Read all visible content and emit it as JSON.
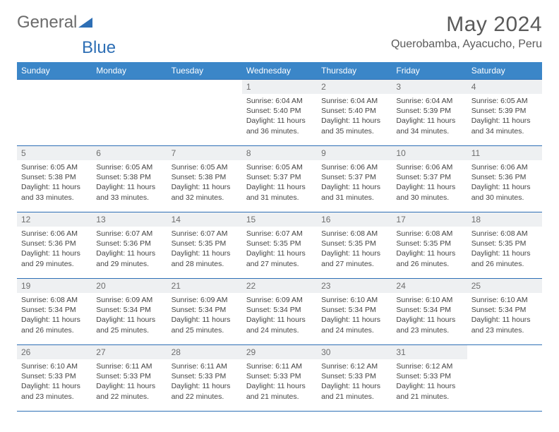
{
  "brand": {
    "part1": "General",
    "part2": "Blue"
  },
  "title": "May 2024",
  "location": "Querobamba, Ayacucho, Peru",
  "weekdays": [
    "Sunday",
    "Monday",
    "Tuesday",
    "Wednesday",
    "Thursday",
    "Friday",
    "Saturday"
  ],
  "colors": {
    "header_bg": "#3b86c8",
    "header_fg": "#ffffff",
    "rule": "#2e6fb5",
    "daynum_bg": "#eef0f2",
    "text": "#444444",
    "logo_gray": "#6b6b6b",
    "logo_blue": "#2e6fb5"
  },
  "first_weekday_index": 3,
  "days": [
    {
      "n": 1,
      "sunrise": "6:04 AM",
      "sunset": "5:40 PM",
      "daylight": "11 hours and 36 minutes."
    },
    {
      "n": 2,
      "sunrise": "6:04 AM",
      "sunset": "5:40 PM",
      "daylight": "11 hours and 35 minutes."
    },
    {
      "n": 3,
      "sunrise": "6:04 AM",
      "sunset": "5:39 PM",
      "daylight": "11 hours and 34 minutes."
    },
    {
      "n": 4,
      "sunrise": "6:05 AM",
      "sunset": "5:39 PM",
      "daylight": "11 hours and 34 minutes."
    },
    {
      "n": 5,
      "sunrise": "6:05 AM",
      "sunset": "5:38 PM",
      "daylight": "11 hours and 33 minutes."
    },
    {
      "n": 6,
      "sunrise": "6:05 AM",
      "sunset": "5:38 PM",
      "daylight": "11 hours and 33 minutes."
    },
    {
      "n": 7,
      "sunrise": "6:05 AM",
      "sunset": "5:38 PM",
      "daylight": "11 hours and 32 minutes."
    },
    {
      "n": 8,
      "sunrise": "6:05 AM",
      "sunset": "5:37 PM",
      "daylight": "11 hours and 31 minutes."
    },
    {
      "n": 9,
      "sunrise": "6:06 AM",
      "sunset": "5:37 PM",
      "daylight": "11 hours and 31 minutes."
    },
    {
      "n": 10,
      "sunrise": "6:06 AM",
      "sunset": "5:37 PM",
      "daylight": "11 hours and 30 minutes."
    },
    {
      "n": 11,
      "sunrise": "6:06 AM",
      "sunset": "5:36 PM",
      "daylight": "11 hours and 30 minutes."
    },
    {
      "n": 12,
      "sunrise": "6:06 AM",
      "sunset": "5:36 PM",
      "daylight": "11 hours and 29 minutes."
    },
    {
      "n": 13,
      "sunrise": "6:07 AM",
      "sunset": "5:36 PM",
      "daylight": "11 hours and 29 minutes."
    },
    {
      "n": 14,
      "sunrise": "6:07 AM",
      "sunset": "5:35 PM",
      "daylight": "11 hours and 28 minutes."
    },
    {
      "n": 15,
      "sunrise": "6:07 AM",
      "sunset": "5:35 PM",
      "daylight": "11 hours and 27 minutes."
    },
    {
      "n": 16,
      "sunrise": "6:08 AM",
      "sunset": "5:35 PM",
      "daylight": "11 hours and 27 minutes."
    },
    {
      "n": 17,
      "sunrise": "6:08 AM",
      "sunset": "5:35 PM",
      "daylight": "11 hours and 26 minutes."
    },
    {
      "n": 18,
      "sunrise": "6:08 AM",
      "sunset": "5:35 PM",
      "daylight": "11 hours and 26 minutes."
    },
    {
      "n": 19,
      "sunrise": "6:08 AM",
      "sunset": "5:34 PM",
      "daylight": "11 hours and 26 minutes."
    },
    {
      "n": 20,
      "sunrise": "6:09 AM",
      "sunset": "5:34 PM",
      "daylight": "11 hours and 25 minutes."
    },
    {
      "n": 21,
      "sunrise": "6:09 AM",
      "sunset": "5:34 PM",
      "daylight": "11 hours and 25 minutes."
    },
    {
      "n": 22,
      "sunrise": "6:09 AM",
      "sunset": "5:34 PM",
      "daylight": "11 hours and 24 minutes."
    },
    {
      "n": 23,
      "sunrise": "6:10 AM",
      "sunset": "5:34 PM",
      "daylight": "11 hours and 24 minutes."
    },
    {
      "n": 24,
      "sunrise": "6:10 AM",
      "sunset": "5:34 PM",
      "daylight": "11 hours and 23 minutes."
    },
    {
      "n": 25,
      "sunrise": "6:10 AM",
      "sunset": "5:34 PM",
      "daylight": "11 hours and 23 minutes."
    },
    {
      "n": 26,
      "sunrise": "6:10 AM",
      "sunset": "5:33 PM",
      "daylight": "11 hours and 23 minutes."
    },
    {
      "n": 27,
      "sunrise": "6:11 AM",
      "sunset": "5:33 PM",
      "daylight": "11 hours and 22 minutes."
    },
    {
      "n": 28,
      "sunrise": "6:11 AM",
      "sunset": "5:33 PM",
      "daylight": "11 hours and 22 minutes."
    },
    {
      "n": 29,
      "sunrise": "6:11 AM",
      "sunset": "5:33 PM",
      "daylight": "11 hours and 21 minutes."
    },
    {
      "n": 30,
      "sunrise": "6:12 AM",
      "sunset": "5:33 PM",
      "daylight": "11 hours and 21 minutes."
    },
    {
      "n": 31,
      "sunrise": "6:12 AM",
      "sunset": "5:33 PM",
      "daylight": "11 hours and 21 minutes."
    }
  ],
  "labels": {
    "sunrise": "Sunrise:",
    "sunset": "Sunset:",
    "daylight": "Daylight:"
  }
}
